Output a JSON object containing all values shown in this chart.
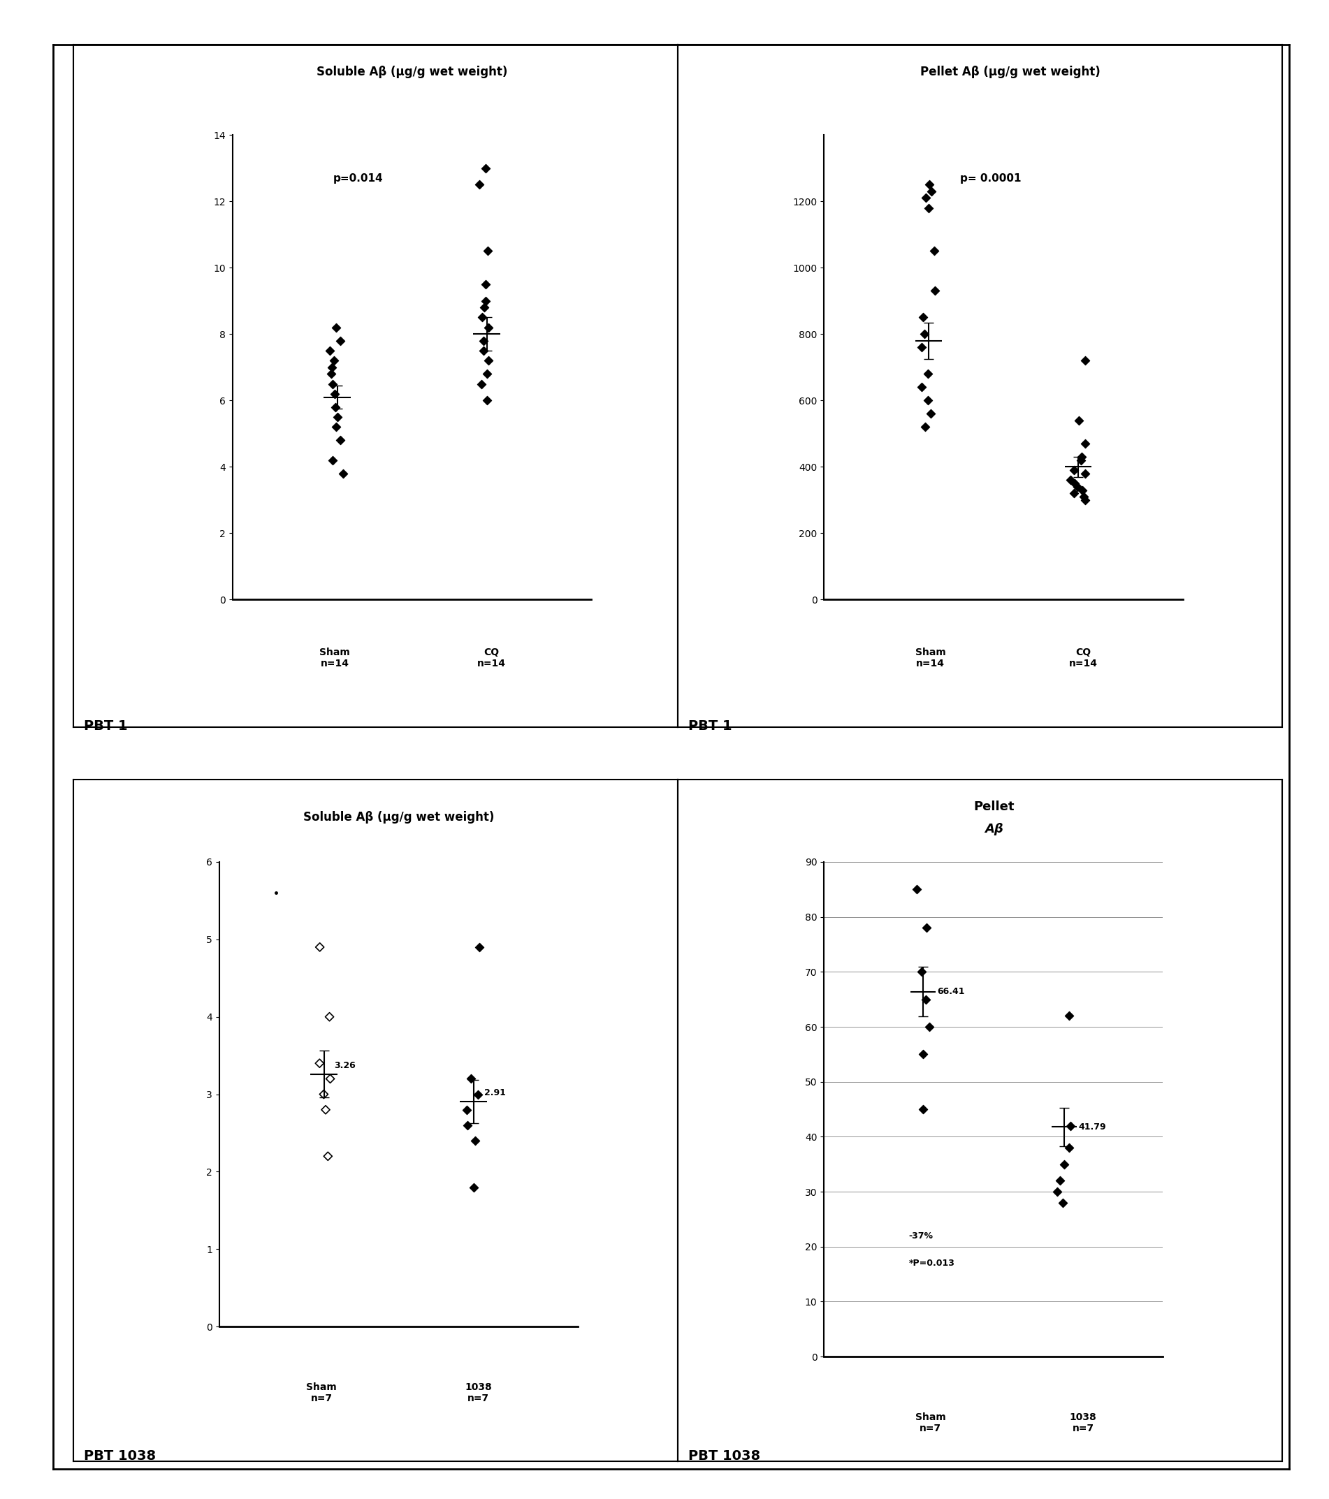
{
  "fig_width": 19.02,
  "fig_height": 21.46,
  "background_color": "#ffffff",
  "ax1": {
    "title": "Soluble Aβ (μg/g wet weight)",
    "ylim": [
      0,
      14
    ],
    "yticks": [
      0,
      2,
      4,
      6,
      8,
      10,
      12,
      14
    ],
    "pvalue": "p=0.014",
    "sham_points": [
      8.2,
      7.8,
      7.5,
      7.2,
      7.0,
      6.8,
      6.5,
      6.2,
      5.8,
      5.5,
      5.2,
      4.8,
      4.2,
      3.8
    ],
    "sham_mean": 6.1,
    "sham_sem": 0.35,
    "cq_points": [
      13.0,
      12.5,
      10.5,
      9.5,
      9.0,
      8.8,
      8.5,
      8.2,
      7.8,
      7.5,
      7.2,
      6.8,
      6.5,
      6.0
    ],
    "cq_mean": 8.0,
    "cq_sem": 0.5,
    "xlabel1": "Sham\nn=14",
    "xlabel2": "CQ\nn=14"
  },
  "ax2": {
    "title": "Pellet Aβ (μg/g wet weight)",
    "ylim": [
      0,
      1400
    ],
    "yticks": [
      0,
      200,
      400,
      600,
      800,
      1000,
      1200
    ],
    "pvalue": "p= 0.0001",
    "sham_points": [
      1250,
      1230,
      1210,
      1180,
      1050,
      930,
      850,
      800,
      760,
      680,
      640,
      600,
      560,
      520
    ],
    "sham_mean": 780,
    "sham_sem": 55,
    "cq_points": [
      720,
      540,
      470,
      430,
      420,
      390,
      380,
      360,
      350,
      340,
      330,
      320,
      310,
      300
    ],
    "cq_mean": 400,
    "cq_sem": 30,
    "xlabel1": "Sham\nn=14",
    "xlabel2": "CQ\nn=14"
  },
  "ax3": {
    "title": "Soluble Aβ (μg/g wet weight)",
    "ylim": [
      0,
      6
    ],
    "yticks": [
      0,
      1,
      2,
      3,
      4,
      5,
      6
    ],
    "sham_points": [
      4.9,
      4.0,
      3.4,
      3.2,
      3.0,
      2.8,
      2.2
    ],
    "sham_mean": 3.26,
    "sham_sem": 0.3,
    "treat_points": [
      4.9,
      3.2,
      3.0,
      2.8,
      2.6,
      2.4,
      1.8
    ],
    "treat_mean": 2.91,
    "treat_sem": 0.28,
    "mean_label_sham": "3.26",
    "mean_label_treat": "2.91",
    "extra_dot": 5.6,
    "xlabel1": "Sham\nn=7",
    "xlabel2": "1038\nn=7"
  },
  "ax4": {
    "title1": "Pellet",
    "title2": "Aβ",
    "ylim": [
      0,
      90
    ],
    "yticks": [
      0,
      10,
      20,
      30,
      40,
      50,
      60,
      70,
      80,
      90
    ],
    "sham_points": [
      85,
      78,
      70,
      65,
      60,
      55,
      45
    ],
    "sham_mean": 66.41,
    "sham_sem": 4.5,
    "treat_points": [
      62,
      42,
      38,
      35,
      32,
      30,
      28
    ],
    "treat_mean": 41.79,
    "treat_sem": 3.5,
    "mean_label_sham": "66.41",
    "mean_label_treat": "41.79",
    "annotation_line1": "-37%",
    "annotation_line2": "*P=0.013",
    "xlabel1": "Sham\nn=7",
    "xlabel2": "1038\nn=7"
  },
  "panel_label_tl": "PBT 1",
  "panel_label_tr": "PBT 1",
  "panel_label_bl": "PBT 1038",
  "panel_label_br": "PBT 1038"
}
